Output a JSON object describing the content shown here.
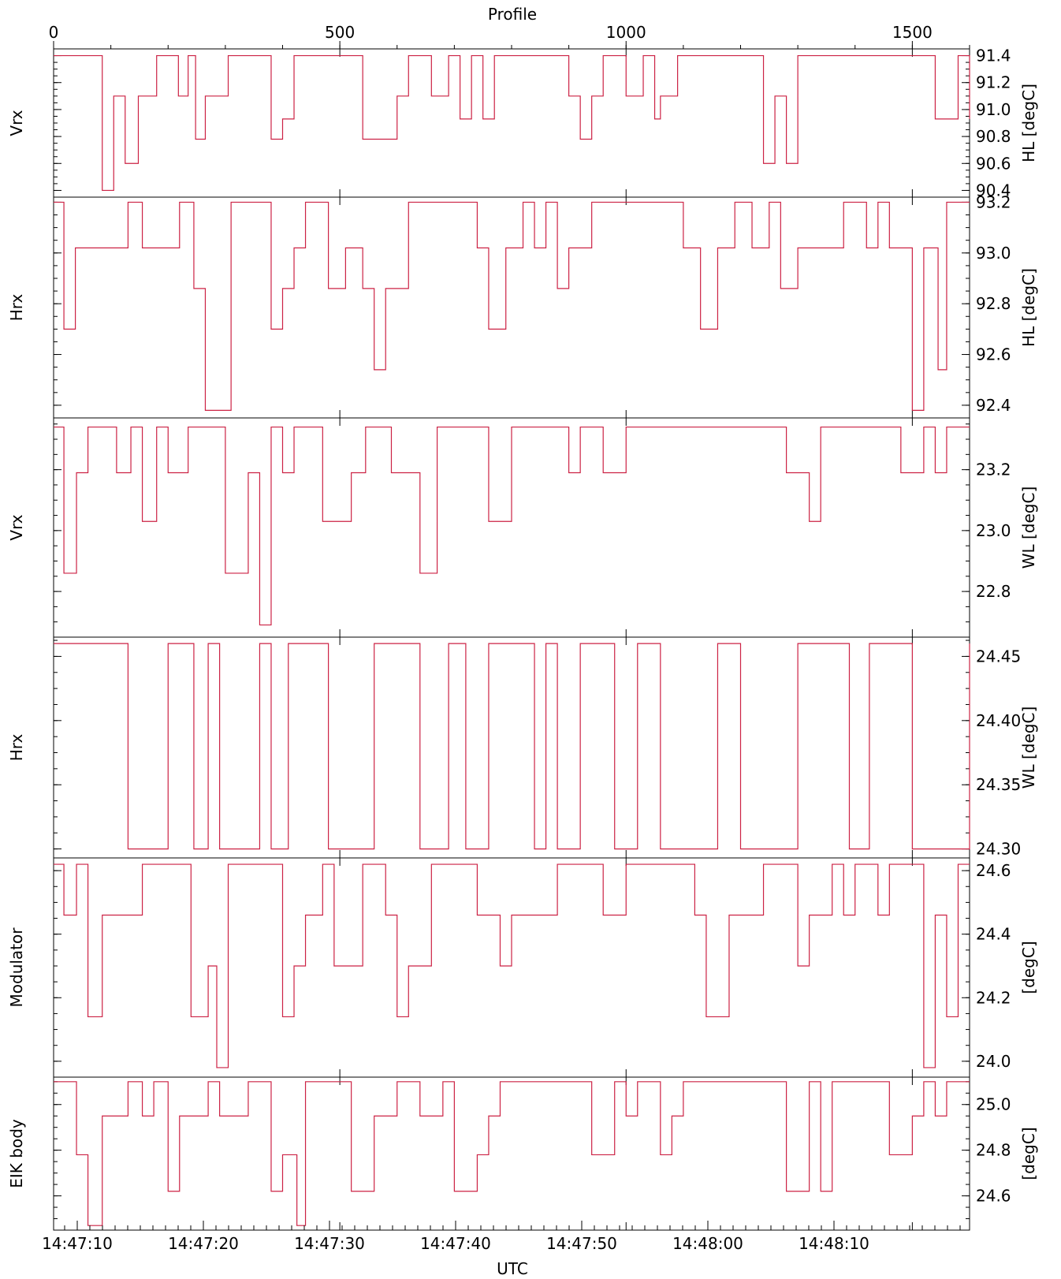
{
  "chart_data": {
    "type": "line",
    "top_axis": {
      "label": "Profile",
      "range": [
        0,
        1600
      ],
      "ticks": [
        0,
        500,
        1000,
        1500
      ]
    },
    "bottom_axis": {
      "label": "UTC",
      "ticks": [
        "14:47:10",
        "14:47:20",
        "14:47:30",
        "14:47:40",
        "14:47:50",
        "14:48:00",
        "14:48:10"
      ]
    },
    "grid": false,
    "series_color": "#cc2244",
    "panels": [
      {
        "left_label": "Vrx",
        "right_label": "HL [degC]",
        "ylim": [
          90.35,
          91.45
        ],
        "yticks": [
          91.4,
          91.2,
          91.0,
          90.8,
          90.6,
          90.4
        ],
        "ytick_labels": [
          "91.4",
          "91.2",
          "91.0",
          "90.8",
          "90.6",
          "90.4"
        ],
        "x": [
          0,
          60,
          85,
          105,
          125,
          148,
          165,
          180,
          195,
          218,
          235,
          248,
          265,
          290,
          305,
          320,
          330,
          340,
          350,
          380,
          400,
          420,
          440,
          460,
          480,
          500,
          540,
          580,
          600,
          620,
          640,
          660,
          690,
          710,
          730,
          750,
          770,
          790,
          810,
          830,
          860,
          880,
          900,
          920,
          940,
          960,
          980,
          1000,
          1030,
          1050,
          1060,
          1070,
          1090,
          1100,
          1120,
          1130,
          1150,
          1180,
          1210,
          1240,
          1260,
          1280,
          1300,
          1320,
          1340,
          1360,
          1380,
          1400,
          1420,
          1440,
          1460,
          1480,
          1500,
          1520,
          1540,
          1560,
          1580,
          1600
        ],
        "y": [
          91.4,
          91.4,
          90.4,
          91.1,
          90.6,
          91.1,
          91.1,
          91.4,
          91.4,
          91.1,
          91.4,
          90.78,
          91.1,
          91.1,
          91.4,
          91.4,
          91.4,
          91.4,
          91.4,
          90.78,
          90.93,
          91.4,
          91.4,
          91.4,
          91.4,
          91.4,
          90.78,
          90.78,
          91.1,
          91.4,
          91.4,
          91.1,
          91.4,
          90.93,
          91.4,
          90.93,
          91.4,
          91.4,
          91.4,
          91.4,
          91.4,
          91.4,
          91.1,
          90.78,
          91.1,
          91.4,
          91.4,
          91.1,
          91.4,
          90.93,
          91.1,
          91.1,
          91.4,
          91.4,
          91.4,
          91.4,
          91.4,
          91.4,
          91.4,
          90.6,
          91.1,
          90.6,
          91.4,
          91.4,
          91.4,
          91.4,
          91.4,
          91.4,
          91.4,
          91.4,
          91.4,
          91.4,
          91.4,
          91.4,
          90.93,
          90.93,
          91.4,
          90.93
        ]
      },
      {
        "left_label": "Hrx",
        "right_label": "HL [degC]",
        "ylim": [
          92.35,
          93.22
        ],
        "yticks": [
          93.2,
          93.0,
          92.8,
          92.6,
          92.4
        ],
        "ytick_labels": [
          "93.2",
          "93.0",
          "92.8",
          "92.6",
          "92.4"
        ],
        "x": [
          0,
          18,
          38,
          85,
          130,
          155,
          220,
          245,
          265,
          310,
          355,
          380,
          400,
          420,
          440,
          480,
          510,
          540,
          560,
          580,
          620,
          660,
          700,
          740,
          760,
          790,
          820,
          840,
          860,
          880,
          900,
          940,
          980,
          1020,
          1060,
          1100,
          1130,
          1160,
          1190,
          1220,
          1250,
          1270,
          1300,
          1340,
          1380,
          1420,
          1440,
          1460,
          1480,
          1500,
          1520,
          1545,
          1560,
          1600
        ],
        "y": [
          93.2,
          92.7,
          93.02,
          93.02,
          93.2,
          93.02,
          93.2,
          92.86,
          92.38,
          93.2,
          93.2,
          92.7,
          92.86,
          93.02,
          93.2,
          92.86,
          93.02,
          92.86,
          92.54,
          92.86,
          93.2,
          93.2,
          93.2,
          93.02,
          92.7,
          93.02,
          93.2,
          93.02,
          93.2,
          92.86,
          93.02,
          93.2,
          93.2,
          93.2,
          93.2,
          93.02,
          92.7,
          93.02,
          93.2,
          93.02,
          93.2,
          92.86,
          93.02,
          93.02,
          93.2,
          93.02,
          93.2,
          93.02,
          93.02,
          92.38,
          93.02,
          92.54,
          93.2,
          93.2
        ]
      },
      {
        "left_label": "Vrx",
        "right_label": "WL [degC]",
        "ylim": [
          22.65,
          23.37
        ],
        "yticks": [
          23.2,
          23.0,
          22.8
        ],
        "ytick_labels": [
          "23.2",
          "23.0",
          "22.8"
        ],
        "x": [
          0,
          18,
          40,
          60,
          110,
          135,
          155,
          180,
          200,
          235,
          260,
          280,
          300,
          340,
          360,
          380,
          400,
          420,
          440,
          470,
          520,
          545,
          560,
          590,
          640,
          670,
          700,
          740,
          760,
          800,
          840,
          860,
          880,
          900,
          920,
          960,
          1000,
          1040,
          1080,
          1120,
          1160,
          1200,
          1240,
          1280,
          1320,
          1340,
          1380,
          1400,
          1420,
          1440,
          1460,
          1480,
          1500,
          1520,
          1540,
          1560,
          1580,
          1600
        ],
        "y": [
          23.34,
          22.86,
          23.19,
          23.34,
          23.19,
          23.34,
          23.03,
          23.34,
          23.19,
          23.34,
          23.34,
          23.34,
          22.86,
          23.19,
          22.69,
          23.34,
          23.19,
          23.34,
          23.34,
          23.03,
          23.19,
          23.34,
          23.34,
          23.19,
          22.86,
          23.34,
          23.34,
          23.34,
          23.03,
          23.34,
          23.34,
          23.34,
          23.34,
          23.19,
          23.34,
          23.19,
          23.34,
          23.34,
          23.34,
          23.34,
          23.34,
          23.34,
          23.34,
          23.19,
          23.03,
          23.34,
          23.34,
          23.34,
          23.34,
          23.34,
          23.34,
          23.19,
          23.19,
          23.34,
          23.19,
          23.34,
          23.34,
          23.34
        ]
      },
      {
        "left_label": "Hrx",
        "right_label": "WL [degC]",
        "ylim": [
          24.293,
          24.465
        ],
        "yticks": [
          24.45,
          24.4,
          24.35,
          24.3
        ],
        "ytick_labels": [
          "24.45",
          "24.40",
          "24.35",
          "24.30"
        ],
        "x": [
          0,
          130,
          200,
          245,
          270,
          290,
          320,
          340,
          360,
          380,
          410,
          480,
          560,
          600,
          640,
          690,
          720,
          760,
          800,
          840,
          860,
          880,
          920,
          980,
          1020,
          1060,
          1120,
          1160,
          1200,
          1240,
          1300,
          1340,
          1390,
          1425,
          1460,
          1500,
          1560,
          1600
        ],
        "y": [
          24.46,
          24.3,
          24.46,
          24.3,
          24.46,
          24.3,
          24.3,
          24.3,
          24.46,
          24.3,
          24.46,
          24.3,
          24.46,
          24.46,
          24.3,
          24.46,
          24.3,
          24.46,
          24.46,
          24.3,
          24.46,
          24.3,
          24.46,
          24.3,
          24.46,
          24.3,
          24.3,
          24.46,
          24.3,
          24.3,
          24.46,
          24.46,
          24.3,
          24.46,
          24.46,
          24.3,
          24.3,
          24.46
        ],
        "breaks_note": ""
      },
      {
        "left_label": "Modulator",
        "right_label": "[degC]",
        "ylim": [
          23.95,
          24.64
        ],
        "yticks": [
          24.6,
          24.4,
          24.2,
          24.0
        ],
        "ytick_labels": [
          "24.6",
          "24.4",
          "24.2",
          "24.0"
        ],
        "x": [
          0,
          18,
          40,
          60,
          85,
          155,
          240,
          270,
          285,
          305,
          330,
          360,
          400,
          420,
          440,
          470,
          490,
          540,
          580,
          600,
          620,
          660,
          680,
          700,
          740,
          780,
          800,
          880,
          960,
          1000,
          1020,
          1060,
          1100,
          1120,
          1140,
          1180,
          1240,
          1280,
          1300,
          1320,
          1360,
          1380,
          1400,
          1440,
          1460,
          1480,
          1500,
          1520,
          1540,
          1560,
          1580,
          1600
        ],
        "y": [
          24.62,
          24.46,
          24.62,
          24.14,
          24.46,
          24.62,
          24.14,
          24.3,
          23.98,
          24.62,
          24.62,
          24.62,
          24.14,
          24.3,
          24.46,
          24.62,
          24.3,
          24.62,
          24.46,
          24.14,
          24.3,
          24.62,
          24.62,
          24.62,
          24.46,
          24.3,
          24.46,
          24.62,
          24.46,
          24.62,
          24.62,
          24.62,
          24.62,
          24.46,
          24.14,
          24.46,
          24.62,
          24.62,
          24.3,
          24.46,
          24.62,
          24.46,
          24.62,
          24.46,
          24.62,
          24.62,
          24.62,
          23.98,
          24.46,
          24.14,
          24.62,
          24.62
        ]
      },
      {
        "left_label": "EIK body",
        "right_label": "[degC]",
        "ylim": [
          24.45,
          25.12
        ],
        "yticks": [
          25.0,
          24.8,
          24.6
        ],
        "ytick_labels": [
          "25.0",
          "24.8",
          "24.6"
        ],
        "x": [
          0,
          40,
          60,
          85,
          130,
          155,
          175,
          200,
          220,
          270,
          290,
          340,
          380,
          400,
          425,
          440,
          480,
          520,
          560,
          600,
          640,
          680,
          700,
          740,
          760,
          780,
          800,
          840,
          900,
          940,
          980,
          1000,
          1020,
          1060,
          1080,
          1100,
          1120,
          1140,
          1160,
          1200,
          1240,
          1280,
          1320,
          1340,
          1360,
          1380,
          1400,
          1460,
          1500,
          1520,
          1540,
          1560,
          1600
        ],
        "y": [
          25.1,
          24.78,
          24.47,
          24.95,
          25.1,
          24.95,
          25.1,
          24.62,
          24.95,
          25.1,
          24.95,
          25.1,
          24.62,
          24.78,
          24.47,
          25.1,
          25.1,
          24.62,
          24.95,
          25.1,
          24.95,
          25.1,
          24.62,
          24.78,
          24.95,
          25.1,
          25.1,
          25.1,
          25.1,
          24.78,
          25.1,
          24.95,
          25.1,
          24.78,
          24.95,
          25.1,
          25.1,
          25.1,
          25.1,
          25.1,
          25.1,
          24.62,
          25.1,
          24.62,
          25.1,
          25.1,
          25.1,
          24.78,
          24.95,
          25.1,
          24.95,
          25.1,
          25.1
        ]
      }
    ]
  }
}
